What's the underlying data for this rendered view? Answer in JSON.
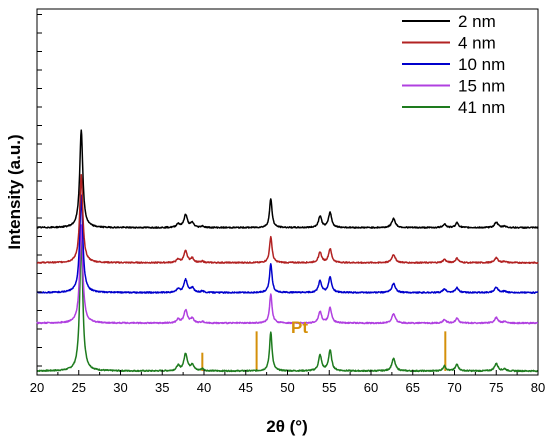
{
  "chart_data": {
    "type": "line",
    "xlabel": "2θ (°)",
    "ylabel": "Intensity (a.u.)",
    "xlim": [
      20,
      80
    ],
    "xticks": [
      "20",
      "25",
      "30",
      "35",
      "40",
      "45",
      "50",
      "55",
      "60",
      "65",
      "70",
      "75",
      "80"
    ],
    "legend_position": "top-right",
    "series": [
      {
        "name": "2 nm",
        "color": "#000000",
        "offset": 4.7,
        "scale": 1.0
      },
      {
        "name": "4 nm",
        "color": "#b22222",
        "offset": 3.55,
        "scale": 0.9
      },
      {
        "name": "10 nm",
        "color": "#0000cc",
        "offset": 2.57,
        "scale": 1.0
      },
      {
        "name": "15 nm",
        "color": "#b040e0",
        "offset": 1.57,
        "scale": 1.0
      },
      {
        "name": "41 nm",
        "color": "#1e7b1e",
        "offset": 0.0,
        "scale": 1.35
      }
    ],
    "peaks": [
      {
        "x": 25.3,
        "h": 3.2,
        "w": 0.22
      },
      {
        "x": 36.9,
        "h": 0.12,
        "w": 0.22
      },
      {
        "x": 37.8,
        "h": 0.42,
        "w": 0.25
      },
      {
        "x": 38.6,
        "h": 0.15,
        "w": 0.22
      },
      {
        "x": 39.8,
        "h": 0.05,
        "w": 0.2
      },
      {
        "x": 48.0,
        "h": 0.95,
        "w": 0.18
      },
      {
        "x": 53.9,
        "h": 0.38,
        "w": 0.22
      },
      {
        "x": 55.1,
        "h": 0.5,
        "w": 0.22
      },
      {
        "x": 62.7,
        "h": 0.3,
        "w": 0.25
      },
      {
        "x": 68.8,
        "h": 0.12,
        "w": 0.22
      },
      {
        "x": 70.3,
        "h": 0.16,
        "w": 0.22
      },
      {
        "x": 75.0,
        "h": 0.18,
        "w": 0.25
      },
      {
        "x": 76.0,
        "h": 0.05,
        "w": 0.2
      }
    ],
    "reference": {
      "label": "Pt",
      "color": "#d4900a",
      "lines": [
        {
          "x": 39.8,
          "h": 0.6
        },
        {
          "x": 46.3,
          "h": 1.3
        },
        {
          "x": 68.9,
          "h": 1.3
        }
      ]
    }
  }
}
